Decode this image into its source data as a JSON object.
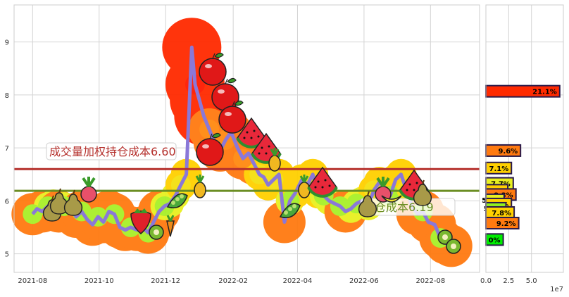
{
  "chart_data": [
    {
      "type": "line",
      "title": "",
      "xlabel": "",
      "ylabel": "",
      "xlim": [
        "2021-07-15",
        "2022-09-15"
      ],
      "ylim": [
        4.65,
        9.7
      ],
      "x_ticks": [
        "2021-08",
        "2021-10",
        "2021-12",
        "2022-02",
        "2022-04",
        "2022-06",
        "2022-08"
      ],
      "y_ticks": [
        5,
        6,
        7,
        8,
        9
      ],
      "grid": true,
      "series": [
        {
          "x": [
            "2021-08-01",
            "2021-08-05",
            "2021-08-10",
            "2021-08-15",
            "2021-08-20",
            "2021-08-25",
            "2021-08-30",
            "2021-09-05",
            "2021-09-10",
            "2021-09-15",
            "2021-09-20",
            "2021-09-25",
            "2021-09-30",
            "2021-10-05",
            "2021-10-10",
            "2021-10-15",
            "2021-10-20",
            "2021-10-25",
            "2021-10-30",
            "2021-11-05",
            "2021-11-10",
            "2021-11-15",
            "2021-11-20",
            "2021-11-25",
            "2021-11-30",
            "2021-12-05",
            "2021-12-10",
            "2021-12-15",
            "2021-12-20",
            "2021-12-25",
            "2021-12-28",
            "2022-01-01",
            "2022-01-05",
            "2022-01-10",
            "2022-01-15",
            "2022-01-20",
            "2022-01-25",
            "2022-01-30",
            "2022-02-05",
            "2022-02-10",
            "2022-02-15",
            "2022-02-20",
            "2022-02-25",
            "2022-03-01",
            "2022-03-05",
            "2022-03-10",
            "2022-03-15",
            "2022-03-20",
            "2022-03-25",
            "2022-03-30",
            "2022-04-05",
            "2022-04-10",
            "2022-04-15",
            "2022-04-20",
            "2022-04-25",
            "2022-04-30",
            "2022-05-05",
            "2022-05-10",
            "2022-05-15",
            "2022-05-20",
            "2022-05-25",
            "2022-05-30",
            "2022-06-05",
            "2022-06-10",
            "2022-06-15",
            "2022-06-20",
            "2022-06-25",
            "2022-06-30",
            "2022-07-05",
            "2022-07-10",
            "2022-07-15",
            "2022-07-20",
            "2022-07-25",
            "2022-07-30",
            "2022-08-05",
            "2022-08-10",
            "2022-08-15",
            "2022-08-20"
          ],
          "y": [
            5.75,
            5.85,
            5.8,
            5.9,
            5.95,
            5.8,
            5.9,
            5.85,
            5.7,
            5.8,
            5.65,
            5.55,
            5.7,
            5.6,
            5.8,
            5.75,
            5.5,
            5.45,
            5.5,
            5.45,
            5.5,
            5.4,
            5.6,
            5.8,
            5.9,
            5.95,
            6.1,
            6.3,
            6.5,
            8.9,
            8.2,
            7.9,
            7.6,
            7.35,
            7.1,
            6.95,
            7.15,
            7.3,
            7.0,
            6.8,
            6.9,
            6.7,
            6.5,
            6.45,
            6.3,
            6.4,
            6.5,
            5.6,
            6.0,
            6.15,
            6.4,
            6.3,
            6.5,
            6.15,
            6.1,
            6.0,
            5.95,
            5.9,
            5.8,
            5.85,
            5.95,
            6.0,
            5.9,
            6.2,
            6.35,
            6.25,
            6.1,
            6.4,
            6.5,
            6.2,
            5.9,
            5.75,
            5.8,
            5.6,
            5.55,
            5.3,
            5.2,
            5.15
          ],
          "color": "#8a78d8"
        }
      ],
      "hlines": [
        {
          "value": 6.6,
          "color": "#b5302c",
          "label": "成交量加权持仓成本6.60"
        },
        {
          "value": 6.19,
          "color": "#6b8e23",
          "label": "持仓成本6.19"
        }
      ],
      "bubble_colors": [
        "#ff2a00",
        "#ff7a10",
        "#ffd000",
        "#e8f020",
        "#90f020"
      ],
      "fruit_icons": [
        "pear-icon",
        "pear-icon",
        "pear-icon",
        "radish-icon",
        "strawberry-icon",
        "kiwi-icon",
        "carrot-icon",
        "peas-icon",
        "pineapple-icon",
        "apple-icon",
        "apple-icon",
        "apple-icon",
        "apple-icon",
        "watermelon-icon",
        "watermelon-icon",
        "pineapple-icon",
        "peas-icon",
        "pineapple-icon",
        "watermelon-icon",
        "pear-icon",
        "radish-icon",
        "banana-icon",
        "watermelon-icon",
        "pear-icon",
        "kiwi-icon",
        "kiwi-icon"
      ]
    },
    {
      "type": "bar",
      "orientation": "horizontal",
      "title": "",
      "xlabel": "",
      "ylabel": "",
      "x_ticks": [
        "0.0",
        "2.5",
        "5.0"
      ],
      "x_scale_label": "1e7",
      "xlim": [
        0,
        8.5
      ],
      "shared_y_with": 0,
      "bars": [
        {
          "price": 8.07,
          "value": 8.1,
          "label": "21.1%",
          "color": "#ff2a00"
        },
        {
          "price": 6.95,
          "value": 3.8,
          "label": "9.6%",
          "color": "#ff7a10"
        },
        {
          "price": 6.62,
          "value": 2.8,
          "label": "7.1%",
          "color": "#ffd000"
        },
        {
          "price": 6.33,
          "value": 3.0,
          "label": "7.7%",
          "color": "#e8f020"
        },
        {
          "price": 6.2,
          "value": 2.4,
          "label": "6.0%",
          "color": "#ffd000"
        },
        {
          "price": 6.12,
          "value": 3.3,
          "label": "8.3%",
          "color": "#ff7a10"
        },
        {
          "price": 6.02,
          "value": 2.0,
          "label": "5.1%",
          "color": "#e8f020"
        },
        {
          "price": 5.94,
          "value": 2.8,
          "label": "7.0%",
          "color": "#ffd000"
        },
        {
          "price": 5.86,
          "value": 2.2,
          "label": "5.7%",
          "color": "#90f020"
        },
        {
          "price": 5.78,
          "value": 3.1,
          "label": "7.8%",
          "color": "#ffd000"
        },
        {
          "price": 5.58,
          "value": 3.6,
          "label": "9.2%",
          "color": "#ff7a10"
        },
        {
          "price": 5.27,
          "value": 1.9,
          "label": "0%",
          "color": "#00ee00"
        }
      ]
    }
  ]
}
